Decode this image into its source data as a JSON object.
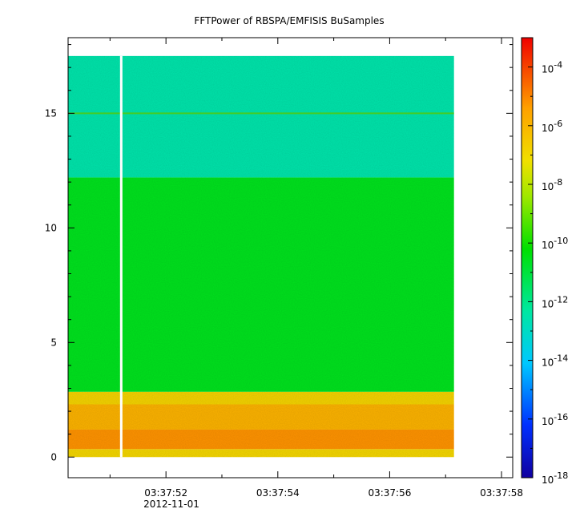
{
  "chart_data": {
    "type": "heatmap",
    "title": "FFTPower of RBSPA/EMFISIS  BuSamples",
    "xlabel": "",
    "ylabel": "",
    "x_ticks": [
      "03:37:52",
      "03:37:54",
      "03:37:56",
      "03:37:58"
    ],
    "x_date_label": "2012-11-01",
    "x_range": [
      "03:37:50.25",
      "03:37:58.2"
    ],
    "data_x_range": [
      "03:37:50.25",
      "03:37:57.15"
    ],
    "gap_time": "03:37:51.2",
    "y_ticks": [
      "0",
      "5",
      "10",
      "15"
    ],
    "y_tick_values": [
      0,
      5,
      10,
      15
    ],
    "ylim": [
      -0.9,
      18.3
    ],
    "data_y_range": [
      0,
      17.5
    ],
    "line_feature_y": 15,
    "colorbar": {
      "scale": "log",
      "range": [
        1e-18,
        0.001
      ],
      "tick_base": "10",
      "tick_exponents": [
        "-4",
        "-6",
        "-8",
        "-10",
        "-12",
        "-14",
        "-16",
        "-18"
      ],
      "tick_values": [
        -4,
        -6,
        -8,
        -10,
        -12,
        -14,
        -16,
        -18
      ]
    },
    "bands": [
      {
        "y_min": 0,
        "y_max": 0.35,
        "level": 6.9
      },
      {
        "y_min": 0.35,
        "y_max": 1.2,
        "level": 5.2
      },
      {
        "y_min": 1.2,
        "y_max": 2.3,
        "level": 5.9
      },
      {
        "y_min": 2.3,
        "y_max": 2.85,
        "level": 6.8
      },
      {
        "y_min": 2.85,
        "y_max": 12.2,
        "level": 10.6
      },
      {
        "y_min": 12.2,
        "y_max": 17.5,
        "level": 12.5
      }
    ]
  }
}
